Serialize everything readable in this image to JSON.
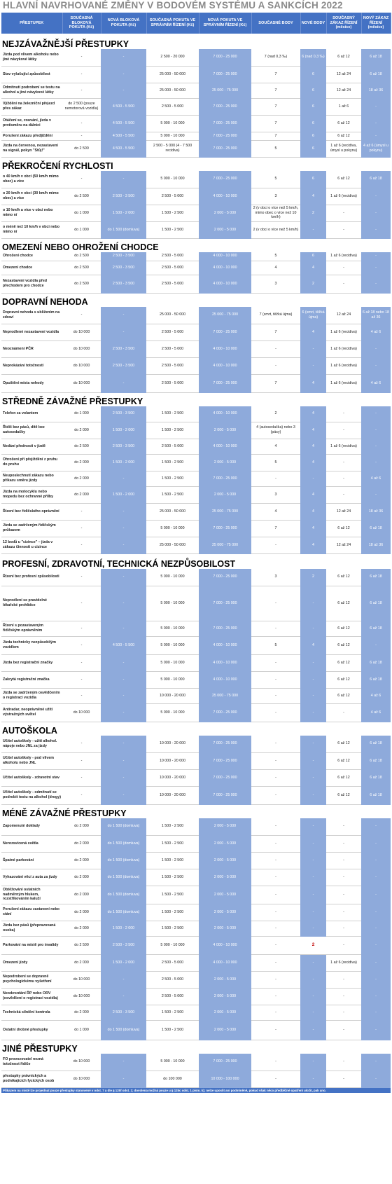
{
  "title": "HLAVNÍ NAVRHOVANÉ ZMĚNY  V BODOVÉM SYSTÉMU A SANKCÍCH 2022",
  "headers": [
    "PŘESTUPEK",
    "SOUČASNÁ BLOKOVÁ POKUTA (Kč)",
    "NOVÁ BLOKOVÁ POKUTA (Kč)",
    "SOUČASNÁ POKUTA VE SPRÁVNÍM ŘÍZENÍ (Kč)",
    "NOVÁ POKUTA VE SPRÁVNÍM ŘÍZENÍ (Kč)",
    "SOUČASNÉ BODY",
    "NOVÉ BODY",
    "SOUČASNÝ ZÁKAZ ŘÍZENÍ (měsíce)",
    "NOVÝ ZÁKAZ ŘÍZENÍ (měsíce)"
  ],
  "footer": "Přikazem na místě lze projednat pouze přestupky stanovené v odst. 7 a dle § 125f odst. 1; dovolena možná pouze u § 125c odst. 1 písm. k); nelze uposlit ani podmíněně, pokud však něco předběžné opatření uložit, pak ano.",
  "sections": [
    {
      "title": "NEJZÁVAŽNĚJŠÍ PŘESTUPKY",
      "h": 22,
      "rows": [
        {
          "h": 24,
          "c": [
            "Jízda pod vlivem alkoholu nebo jiné návykové látky",
            "-",
            "-",
            "2 500 - 20 000",
            "7 000 - 25 000",
            "7 (nad 0,3 ‰)",
            "6 (nad 0,3 ‰)",
            "6 až 12",
            "6 až 18"
          ]
        },
        {
          "h": 24,
          "c": [
            "Stav vylučující způsobilost",
            "-",
            "-",
            "25 000 - 50 000",
            "7 000 - 25 000",
            "7",
            "6",
            "12 až 24",
            "6 až 18"
          ]
        },
        {
          "h": 22,
          "c": [
            "Odmítnutí podrobení se testu na alkohol a jiné návykové látky",
            "-",
            "-",
            "25 000 - 50 000",
            "25 000 - 75 000",
            "7",
            "6",
            "12 až 24",
            "18 až 36"
          ]
        },
        {
          "h": 24,
          "c": [
            "Vjíždění na železniční přejezd přes zákaz",
            "do 2 500 (pouze nemotorová vozidla)",
            "4 500 - 5 500",
            "2 500 - 5 000",
            "7 000 - 25 000",
            "7",
            "6",
            "1 až 6",
            "-"
          ]
        },
        {
          "h": 24,
          "c": [
            "Otáčení se, couvání, jízda v protisměru na dálnici",
            "-",
            "4 500 - 5 500",
            "5 000 - 10 000",
            "7 000 - 25 000",
            "7",
            "6",
            "6 až 12",
            "-"
          ]
        },
        {
          "h": 12,
          "c": [
            "Porušení zákazu předjíždění",
            "-",
            "4 500 - 5 500",
            "5 000 - 10 000",
            "7 000 - 25 000",
            "7",
            "6",
            "6 až 12",
            "-"
          ]
        },
        {
          "h": 24,
          "c": [
            "Jízda na červenou, nezastavení na signál, pokyn \"Stůj!\"",
            "do 2 500",
            "4 500 - 5 500",
            "2 500 - 5 000 (4 - 7 500 recidiva)",
            "7 000 - 25 000",
            "5",
            "6",
            "1 až 6 (recidiva, úmysl u pokynu)",
            "4 až 6 (úmysl u pokynu)"
          ]
        }
      ]
    },
    {
      "title": "PŘEKROČENÍ RYCHLOSTI",
      "h": 20,
      "rows": [
        {
          "h": 24,
          "c": [
            "o 40 km/h v obci (50 km/h mimo obec) a více",
            "-",
            "-",
            "5 000 - 10 000",
            "7 000 - 25 000",
            "5",
            "6",
            "6 až 12",
            "6 až 18"
          ]
        },
        {
          "h": 24,
          "c": [
            "o 20 km/h v obci (30 km/h mimo obec) a více",
            "do 2 500",
            "2 500 - 3 500",
            "2 500 - 5 000",
            "4 000 - 10 000",
            "3",
            "4",
            "1 až 6 (recidiva)",
            "-"
          ]
        },
        {
          "h": 24,
          "c": [
            "o 10 km/h a více v obci nebo mimo ní",
            "do 1 000",
            "1 500 - 2 000",
            "1 500 - 2 500",
            "2 000 - 5 000",
            "2 (v obci o více než 5 km/h, mimo obec o více než 10 km/h)",
            "2",
            "-",
            "-"
          ]
        },
        {
          "h": 24,
          "c": [
            "o méně než 10 km/h v obci nebo mimo ní",
            "do 1 000",
            "do 1 500 (domluva)",
            "1 500 - 2 500",
            "2 000 - 5 000",
            "2 (v obci o více než 5 km/h)",
            "-",
            "-",
            "-"
          ]
        }
      ]
    },
    {
      "title": "OMEZENÍ NEBO OHROŽENÍ CHODCE",
      "h": 20,
      "rows": [
        {
          "h": 12,
          "c": [
            "Ohrožení chodce",
            "do 2 500",
            "2 500 - 3 500",
            "2 500 - 5 000",
            "4 000 - 10 000",
            "5",
            "6",
            "1 až 6 (recidiva)",
            "-"
          ]
        },
        {
          "h": 20,
          "c": [
            "Omezení chodce",
            "do 2 500",
            "2 500 - 3 500",
            "2 500 - 5 000",
            "4 000 - 10 000",
            "4",
            "4",
            "-",
            "-"
          ]
        },
        {
          "h": 26,
          "c": [
            "Nezastavení vozidla před přechodem pro chodce",
            "do 2 500",
            "2 500 - 3 500",
            "2 500 - 5 000",
            "4 000 - 10 000",
            "3",
            "2",
            "-",
            "-"
          ]
        }
      ]
    },
    {
      "title": "DOPRAVNÍ NEHODA",
      "h": 20,
      "rows": [
        {
          "h": 24,
          "c": [
            "Dopravní nehoda s ubližením na zdraví",
            "-",
            "-",
            "25 000 - 50 000",
            "25 000 - 75 000",
            "7 (smrt, těžká újma)",
            "6 (smrt, těžká újma)",
            "12 až 24",
            "6 až 18 nebo 18 až 36"
          ]
        },
        {
          "h": 24,
          "c": [
            "Neprodlené nezastavení vozidla",
            "do 10 000",
            "-",
            "2 500 - 5 000",
            "7 000 - 25 000",
            "7",
            "4",
            "1 až 6 (recidiva)",
            "4 až 6"
          ]
        },
        {
          "h": 24,
          "c": [
            "Neoznámení PČR",
            "do 10 000",
            "2 500 - 3 500",
            "2 500 - 5 000",
            "4 000 - 10 000",
            "-",
            "-",
            "1 až 6 (recidiva)",
            "-"
          ]
        },
        {
          "h": 24,
          "c": [
            "Neprokázání totožnosti",
            "do 10 000",
            "2 500 - 3 500",
            "2 500 - 5 000",
            "4 000 - 10 000",
            "-",
            "-",
            "1 až 6 (recidiva)",
            "-"
          ]
        },
        {
          "h": 26,
          "c": [
            "Opuštění místa nehody",
            "do 10 000",
            "-",
            "2 500 - 5 000",
            "7 000 - 25 000",
            "7",
            "4",
            "1 až 6 (recidiva)",
            "4 až 6"
          ]
        }
      ]
    },
    {
      "title": "STŘEDNĚ ZÁVAŽNÉ PŘESTUPKY",
      "h": 20,
      "rows": [
        {
          "h": 22,
          "c": [
            "Telefon za volantem",
            "do 1 000",
            "2 500 - 3 500",
            "1 500 - 2 500",
            "4 000 - 10 000",
            "2",
            "4",
            "-",
            "-"
          ]
        },
        {
          "h": 24,
          "c": [
            "Řidič bez pásů, dítě bez autosedačky",
            "do 2 000",
            "1 500 - 2 000",
            "1 500 - 2 500",
            "2 000 - 5 000",
            "4 (autosedačka) nebo 3 (pásy)",
            "4",
            "-",
            "-"
          ]
        },
        {
          "h": 22,
          "c": [
            "Nedání přednosti v jízdě",
            "do 2 500",
            "2 500 - 3 500",
            "2 500 - 5 000",
            "4 000 - 10 000",
            "4",
            "4",
            "1 až 6 (recidiva)",
            "-"
          ]
        },
        {
          "h": 24,
          "c": [
            "Ohrožení při přejíždění z pruhu do pruhu",
            "do 2 000",
            "1 500 - 2 000",
            "1 500 - 2 500",
            "2 000 - 5 000",
            "5",
            "4",
            "-",
            "-"
          ]
        },
        {
          "h": 22,
          "c": [
            "Neuposlechnutí zákazu nebo příkazu směru jízdy",
            "do 2 000",
            "-",
            "1 500 - 2 500",
            "7 000 - 25 000",
            "-",
            "-",
            "-",
            "4 až 6"
          ]
        },
        {
          "h": 24,
          "c": [
            "Jízda na motocyklu nebo mopedu bez ochranné přilby",
            "do 2 000",
            "1 500 - 2 000",
            "1 500 - 2 500",
            "2 000 - 5 000",
            "3",
            "4",
            "-",
            "-"
          ]
        },
        {
          "h": 24,
          "c": [
            "Řízení bez řidičského oprávnění",
            "-",
            "-",
            "25 000 - 50 000",
            "25 000 - 75 000",
            "4",
            "4",
            "12 až 24",
            "18 až 36"
          ]
        },
        {
          "h": 24,
          "c": [
            "Jízda se zadrženým řidičským průkazem",
            "-",
            "-",
            "5 000 - 10 000",
            "7 000 - 25 000",
            "7",
            "4",
            "6 až 12",
            "6 až 18"
          ]
        },
        {
          "h": 24,
          "c": [
            "12 bodů u \"cizince\" – jízda v zákazu činnosti u cizince",
            "-",
            "-",
            "25 000 - 50 000",
            "25 000 - 75 000",
            "-",
            "4",
            "12 až 24",
            "18 až 36"
          ]
        }
      ]
    },
    {
      "title": "PROFESNÍ, ZDRAVOTNÍ, TECHNICKÁ NEZPŮSOBILOST",
      "h": 22,
      "rows": [
        {
          "h": 24,
          "c": [
            "Řízení bez profesní způsobilosti",
            "-",
            "-",
            "5 000 - 10 000",
            "7 000 - 25 000",
            "3",
            "2",
            "6 až 12",
            "6 až 18"
          ]
        },
        {
          "h": 50,
          "c": [
            "Neprodlení se pravidelné lékařské prohlídce",
            "-",
            "-",
            "5 000 - 10 000",
            "7 000 - 25 000",
            "-",
            "-",
            "6 až 12",
            "6 až 18"
          ]
        },
        {
          "h": 22,
          "c": [
            "Řízení s pozastaveným řidičským oprávněním",
            "-",
            "-",
            "5 000 - 10 000",
            "7 000 - 25 000",
            "-",
            "-",
            "6 až 12",
            "6 až 18"
          ]
        },
        {
          "h": 26,
          "c": [
            "Jízda technicky nezpůsobilým vozidlem",
            "-",
            "4 500 - 5 500",
            "5 000 - 10 000",
            "4 000 - 10 000",
            "5",
            "4",
            "6 až 12",
            "-"
          ]
        },
        {
          "h": 24,
          "c": [
            "Jízda bez registrační značky",
            "-",
            "-",
            "5 000 - 10 000",
            "4 000 - 10 000",
            "-",
            "-",
            "6 až 12",
            "6 až 18"
          ]
        },
        {
          "h": 24,
          "c": [
            "Zakrytá registrační značka",
            "-",
            "-",
            "5 000 - 10 000",
            "4 000 - 10 000",
            "-",
            "-",
            "6 až 12",
            "6 až 18"
          ]
        },
        {
          "h": 22,
          "c": [
            "Jízda se zadrženým osvědčením o registraci vozidla",
            "-",
            "-",
            "10 000 - 20 000",
            "25 000 - 75 000",
            "-",
            "-",
            "6 až 12",
            "4 až 6"
          ]
        },
        {
          "h": 26,
          "c": [
            "Antiradar, neoprávněné užití výstražných světel",
            "do 10 000",
            "-",
            "5 000 - 10 000",
            "7 000 - 25 000",
            "-",
            "-",
            "-",
            "4 až 6"
          ]
        }
      ]
    },
    {
      "title": "AUTOŠKOLA",
      "h": 20,
      "rows": [
        {
          "h": 24,
          "c": [
            "Učitel autoškoly - užití alkohol. nápoje nebo JNL za jízdy",
            "-",
            "-",
            "10 000 - 20 000",
            "7 000 - 25 000",
            "-",
            "-",
            "6 až 12",
            "6 až 18"
          ]
        },
        {
          "h": 24,
          "c": [
            "Učitel autoškoly - pod vlivem alkoholu nebo JNL",
            "-",
            "-",
            "10 000 - 20 000",
            "7 000 - 25 000",
            "-",
            "-",
            "6 až 12",
            "6 až 18"
          ]
        },
        {
          "h": 24,
          "c": [
            "Učitel autoškoly - zdravotní stav",
            "-",
            "-",
            "10 000 - 20 000",
            "7 000 - 25 000",
            "-",
            "-",
            "6 až 12",
            "6 až 18"
          ]
        },
        {
          "h": 26,
          "c": [
            "Učitel autoškoly - odmítnutí se podrobit testu na alkohol (drogy)",
            "-",
            "-",
            "10 000 - 20 000",
            "7 000 - 25 000",
            "-",
            "-",
            "6 až 12",
            "6 až 18"
          ]
        }
      ]
    },
    {
      "title": "MÉNĚ ZÁVAŽNÉ PŘESTUPKY",
      "h": 20,
      "rows": [
        {
          "h": 24,
          "c": [
            "Zapomenuté doklady",
            "do 2 000",
            "do 1 500 (domluva)",
            "1 500 - 2 500",
            "2 000 - 5 000",
            "-",
            "-",
            "-",
            "-"
          ]
        },
        {
          "h": 24,
          "c": [
            "Nerozsvícená světla",
            "do 2 000",
            "do 1 500 (domluva)",
            "1 500 - 2 500",
            "2 000 - 5 000",
            "-",
            "-",
            "-",
            "-"
          ]
        },
        {
          "h": 24,
          "c": [
            "Špatné parkování",
            "do 2 000",
            "do 1 500 (domluva)",
            "1 500 - 2 500",
            "2 000 - 5 000",
            "-",
            "-",
            "-",
            "-"
          ]
        },
        {
          "h": 24,
          "c": [
            "Vyhazování věcí z auta za jízdy",
            "do 2 000",
            "do 1 500 (domluva)",
            "1 500 - 2 500",
            "2 000 - 5 000",
            "-",
            "-",
            "-",
            "-"
          ]
        },
        {
          "h": 26,
          "c": [
            "Obtěžování ostatních nadměrným hlukem, rozstřikováním kaluží",
            "do 2 000",
            "do 1 500 (domluva)",
            "1 500 - 2 500",
            "2 000 - 5 000",
            "-",
            "-",
            "-",
            "-"
          ]
        },
        {
          "h": 24,
          "c": [
            "Porušení zákazu zastavení nebo stání",
            "do 2 000",
            "do 1 500 (domluva)",
            "1 500 - 2 500",
            "2 000 - 5 000",
            "-",
            "-",
            "-",
            "-"
          ]
        },
        {
          "h": 22,
          "c": [
            "Jízda bez pásů (přepravovaná osoba)",
            "do 2 000",
            "1 500 - 2 000",
            "1 500 - 2 500",
            "2 000 - 5 000",
            "-",
            "-",
            "-",
            "-"
          ]
        },
        {
          "h": 26,
          "c": [
            "Parkování na místě pro invalidy",
            "do 2 500",
            "2 500 - 3 500",
            "5 000 - 10 000",
            "4 000 - 10 000",
            "-",
            "2",
            "-",
            "-"
          ]
        },
        {
          "h": 24,
          "c": [
            "Omezení jízdy",
            "do 2 000",
            "1 500 - 2 000",
            "2 500 - 5 000",
            "4 000 - 10 000",
            "-",
            "-",
            "1 až 6 (recidiva)",
            "-"
          ]
        },
        {
          "h": 24,
          "c": [
            "Nepodrobení se dopravně psychologickému vyšetření",
            "do 10 000",
            "-",
            "2 500 - 5 000",
            "2 000 - 5 000",
            "-",
            "-",
            "-",
            "-"
          ]
        },
        {
          "h": 24,
          "c": [
            "Neodevzdání ŘP nebo ORV (osvědčení o registraci vozidla)",
            "do 10 000",
            "-",
            "2 500 - 5 000",
            "2 000 - 5 000",
            "-",
            "-",
            "-",
            "-"
          ]
        },
        {
          "h": 22,
          "c": [
            "Technická silniční kontrola",
            "do 2 000",
            "2 500 - 3 500",
            "1 500 - 2 500",
            "2 000 - 5 000",
            "-",
            "-",
            "-",
            "-"
          ]
        },
        {
          "h": 28,
          "c": [
            "Ostatní drobné přestupky",
            "do 1 000",
            "do 1 500 (domluva)",
            "1 500 - 2 500",
            "2 000 - 5 000",
            "-",
            "-",
            "-",
            "-"
          ]
        }
      ]
    },
    {
      "title": "JINÉ PŘESTUPKY",
      "h": 20,
      "rows": [
        {
          "h": 24,
          "c": [
            "FO provozovatel nezná totožnost řidiče",
            "do 10 000",
            "-",
            "5 000 - 10 000",
            "7 000 - 25 000",
            "-",
            "-",
            "-",
            "-"
          ]
        },
        {
          "h": 24,
          "c": [
            "přestupky právnických a podnikajících fyzických osob",
            "do 10 000",
            "-",
            "do 100 000",
            "10 000 - 100 000",
            "-",
            "-",
            "-",
            "-"
          ]
        }
      ]
    }
  ]
}
